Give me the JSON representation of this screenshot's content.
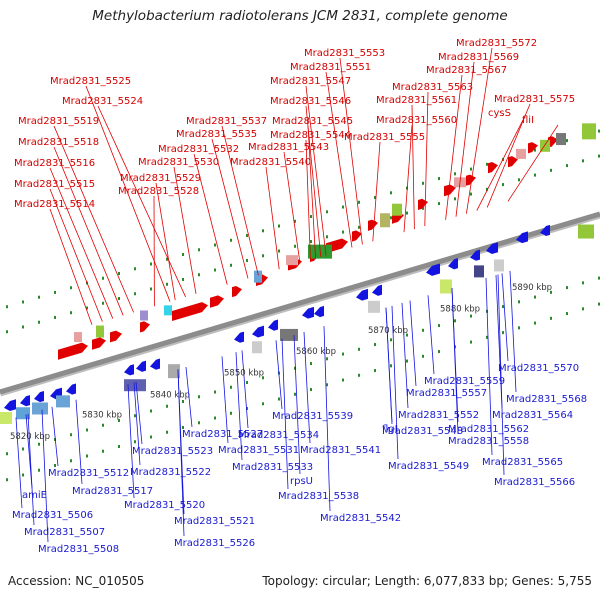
{
  "title": "Methylobacterium radiotolerans JCM 2831, complete genome",
  "footer": {
    "accession": "Accession: NC_010505",
    "summary": "Topology: circular; Length: 6,077,833 bp; Genes: 5,755"
  },
  "scale_labels": [
    "5820 kbp",
    "5830 kbp",
    "5840 kbp",
    "5850 kbp",
    "5860 kbp",
    "5870 kbp",
    "5880 kbp",
    "5890 kbp"
  ],
  "upper_genes": [
    "Mrad2831_5514",
    "Mrad2831_5515",
    "Mrad2831_5516",
    "Mrad2831_5518",
    "Mrad2831_5519",
    "Mrad2831_5524",
    "Mrad2831_5525",
    "Mrad2831_5528",
    "Mrad2831_5529",
    "Mrad2831_5530",
    "Mrad2831_5532",
    "Mrad2831_5535",
    "Mrad2831_5537",
    "Mrad2831_5540",
    "Mrad2831_5543",
    "Mrad2831_5544",
    "Mrad2831_5545",
    "Mrad2831_5546",
    "Mrad2831_5547",
    "Mrad2831_5551",
    "Mrad2831_5553",
    "Mrad2831_5555",
    "Mrad2831_5560",
    "Mrad2831_5561",
    "Mrad2831_5563",
    "Mrad2831_5567",
    "Mrad2831_5569",
    "Mrad2831_5572",
    "cysS",
    "Mrad2831_5575",
    "fliI"
  ],
  "lower_genes": [
    "amiE",
    "Mrad2831_5506",
    "Mrad2831_5507",
    "Mrad2831_5508",
    "Mrad2831_5512",
    "Mrad2831_5517",
    "Mrad2831_5520",
    "Mrad2831_5521",
    "Mrad2831_5522",
    "Mrad2831_5523",
    "Mrad2831_5526",
    "Mrad2831_5527",
    "Mrad2831_5531",
    "Mrad2831_5533",
    "Mrad2831_5534",
    "rpsU",
    "Mrad2831_5538",
    "Mrad2831_5539",
    "Mrad2831_5541",
    "Mrad2831_5542",
    "flgI",
    "Mrad2831_5548",
    "Mrad2831_5549",
    "Mrad2831_5552",
    "Mrad2831_5557",
    "Mrad2831_5558",
    "Mrad2831_5559",
    "Mrad2831_5562",
    "Mrad2831_5564",
    "Mrad2831_5565",
    "Mrad2831_5566",
    "Mrad2831_5568",
    "Mrad2831_5570"
  ],
  "colors": {
    "forward_gene": "#e00000",
    "reverse_gene": "#1414e0",
    "backbone": "#8c8c8c",
    "tick": "#2a8a2a"
  }
}
